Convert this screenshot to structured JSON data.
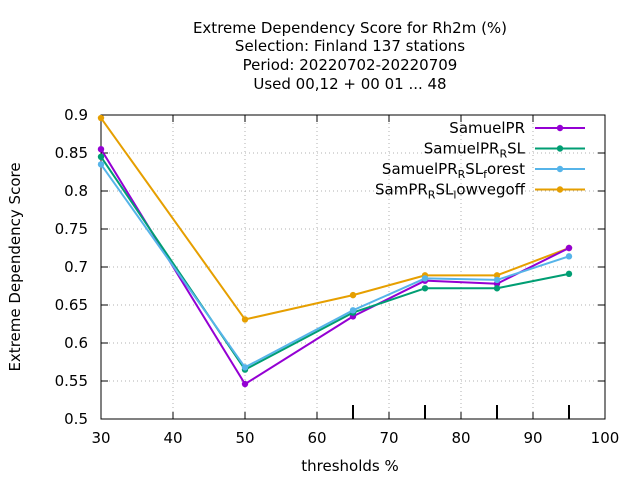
{
  "chart_data": {
    "type": "line",
    "title_lines": [
      "Extreme Dependency Score  for Rh2m (%)",
      "Selection: Finland    137 stations",
      "Period: 20220702-20220709",
      "Used  00,12  + 00 01 ... 48"
    ],
    "xlabel": "thresholds %",
    "ylabel": "Extreme Dependency Score",
    "xlim": [
      30,
      100
    ],
    "ylim": [
      0.5,
      0.9
    ],
    "x_ticks": [
      30,
      40,
      50,
      60,
      70,
      80,
      90,
      100
    ],
    "y_ticks": [
      0.5,
      0.55,
      0.6,
      0.65,
      0.7,
      0.75,
      0.8,
      0.85,
      0.9
    ],
    "x_tick_labels": [
      "30",
      "40",
      "50",
      "60",
      "70",
      "80",
      "90",
      "100"
    ],
    "y_tick_labels": [
      "0.5",
      "0.55",
      "0.6",
      "0.65",
      "0.7",
      "0.75",
      "0.8",
      "0.85",
      "0.9"
    ],
    "grid": true,
    "legend_position": "top-right",
    "x": [
      30,
      50,
      65,
      75,
      85,
      95
    ],
    "series": [
      {
        "name": "SamuelPR",
        "legend_parts": [
          [
            "SamuelPR",
            ""
          ]
        ],
        "color": "#9400d3",
        "values": [
          0.855,
          0.546,
          0.635,
          0.682,
          0.678,
          0.725
        ]
      },
      {
        "name": "SamuelPR_RSL",
        "legend_parts": [
          [
            "SamuelPR",
            ""
          ],
          [
            "R",
            "sub"
          ],
          [
            "SL",
            ""
          ]
        ],
        "color": "#009e73",
        "values": [
          0.845,
          0.565,
          0.64,
          0.672,
          0.672,
          0.691
        ]
      },
      {
        "name": "SamuelPR_RSL_forest",
        "legend_parts": [
          [
            "SamuelPR",
            ""
          ],
          [
            "R",
            "sub"
          ],
          [
            "SL",
            ""
          ],
          [
            "f",
            "sub"
          ],
          [
            "orest",
            ""
          ]
        ],
        "color": "#56b4e9",
        "values": [
          0.835,
          0.568,
          0.643,
          0.685,
          0.683,
          0.714
        ]
      },
      {
        "name": "SamPR_RSL_lowvegoff",
        "legend_parts": [
          [
            "SamPR",
            ""
          ],
          [
            "R",
            "sub"
          ],
          [
            "SL",
            ""
          ],
          [
            "l",
            "sub"
          ],
          [
            "owvegoff",
            ""
          ]
        ],
        "color": "#e69f00",
        "values": [
          0.896,
          0.631,
          0.663,
          0.689,
          0.689,
          0.725
        ]
      }
    ]
  }
}
